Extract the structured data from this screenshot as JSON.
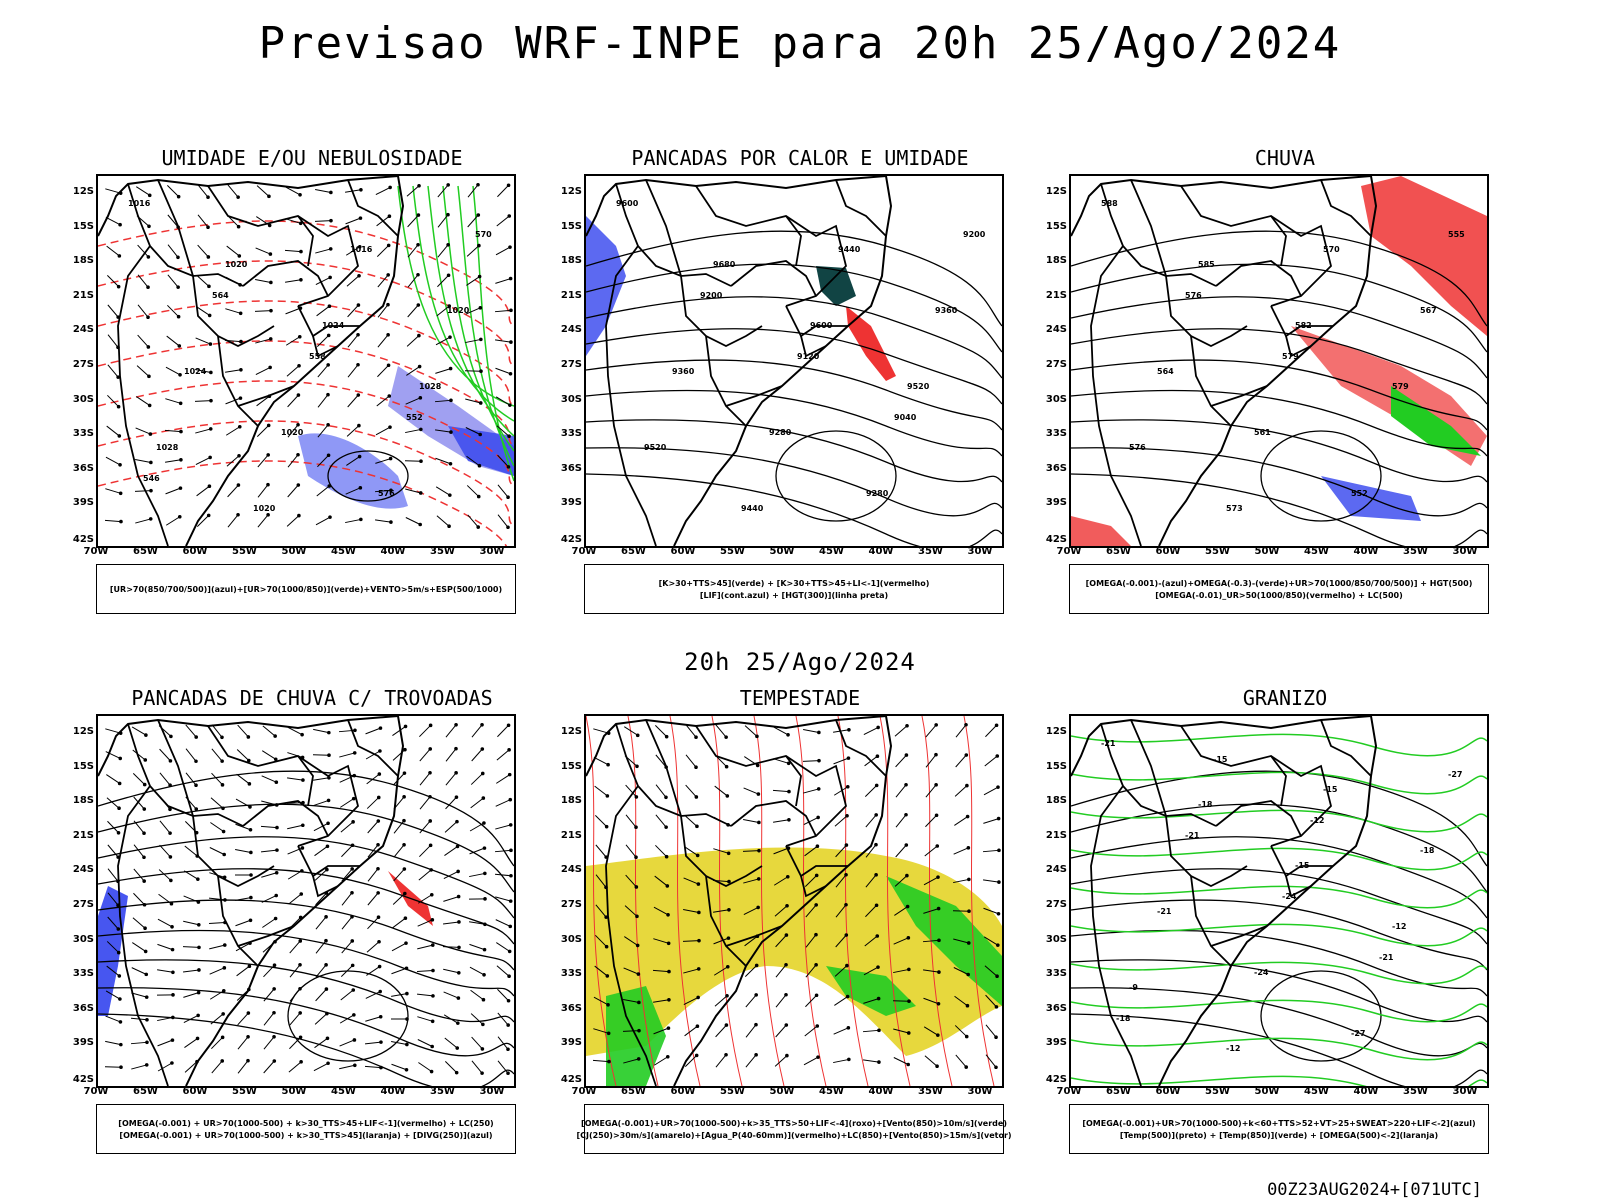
{
  "title": "Previsao WRF-INPE  para 20h 25/Ago/2024",
  "mid_title": "20h 25/Ago/2024",
  "footer": "00Z23AUG2024+[071UTC]",
  "lat_labels": [
    "12S",
    "15S",
    "18S",
    "21S",
    "24S",
    "27S",
    "30S",
    "33S",
    "36S",
    "39S",
    "42S"
  ],
  "lon_labels": [
    "70W",
    "65W",
    "60W",
    "55W",
    "50W",
    "45W",
    "40W",
    "35W",
    "30W"
  ],
  "colors": {
    "blue": "#3344ee",
    "lavender": "#8888ee",
    "green": "#22cc22",
    "red": "#ee3333",
    "dark_teal": "#114444",
    "yellow": "#e6d633",
    "orange": "#ee7722"
  },
  "panels": [
    {
      "title": "UMIDADE E/OU NEBULOSIDADE",
      "legend": [
        "[UR>70(850/700/500)](azul)+[UR>70(1000/850)](verde)+VENTO>5m/s+ESP(500/1000)"
      ],
      "labels": [
        "1016",
        "1020",
        "1024",
        "1028",
        "1028",
        "1020",
        "1016",
        "1020",
        "1024",
        "1020",
        "576",
        "570",
        "564",
        "558",
        "552",
        "546"
      ]
    },
    {
      "title": "PANCADAS POR CALOR E UMIDADE",
      "legend": [
        "[K>30+TTS>45](verde) + [K>30+TTS>45+LI<-1](vermelho)",
        "[LIF](cont.azul) + [HGT(300)](linha preta)"
      ],
      "labels": [
        "9600",
        "9680",
        "9600",
        "9520",
        "9520",
        "9440",
        "9440",
        "9360",
        "9360",
        "9280",
        "9280",
        "9200",
        "9200",
        "9120",
        "9040"
      ]
    },
    {
      "title": "CHUVA",
      "legend": [
        "[OMEGA(-0.001)-(azul)+OMEGA(-0.3)-(verde)+UR>70(1000/850/700/500)] + HGT(500)",
        "[OMEGA(-0.01)_UR>50(1000/850)(vermelho) + LC(500)"
      ],
      "labels": [
        "588",
        "585",
        "582",
        "579",
        "576",
        "573",
        "570",
        "567",
        "564",
        "561",
        "552",
        "555",
        "576",
        "579"
      ]
    },
    {
      "title": "PANCADAS DE CHUVA C/ TROVOADAS",
      "legend": [
        "[OMEGA(-0.001) + UR>70(1000-500) + k>30_TTS>45+LIF<-1](vermelho) + LC(250)",
        "[OMEGA(-0.001) + UR>70(1000-500) + k>30_TTS>45](laranja) + [DIVG(250)](azul)"
      ],
      "labels": []
    },
    {
      "title": "TEMPESTADE",
      "legend": [
        "[OMEGA(-0.001)+UR>70(1000-500)+k>35_TTS>50+LIF<-4](roxo)+[Vento(850)>10m/s](verde)",
        "[CJ(250)>30m/s](amarelo)+[Agua_P(40-60mm)](vermelho)+LC(850)+[Vento(850)>15m/s](vetor)"
      ],
      "labels": []
    },
    {
      "title": "GRANIZO",
      "legend": [
        "[OMEGA(-0.001)+UR>70(1000-500)+k<60+TTS>52+VT>25+SWEAT>220+LIF<-2](azul)",
        "[Temp(500)](preto) + [Temp(850)](verde) + [OMEGA(500)<-2](laranja)"
      ],
      "labels": [
        "-21",
        "-18",
        "-15",
        "-12",
        "-9",
        "-12",
        "-15",
        "-18",
        "-21",
        "-24",
        "-27",
        "-27",
        "-21",
        "-24",
        "-21",
        "-18",
        "-15",
        "-12"
      ]
    }
  ]
}
